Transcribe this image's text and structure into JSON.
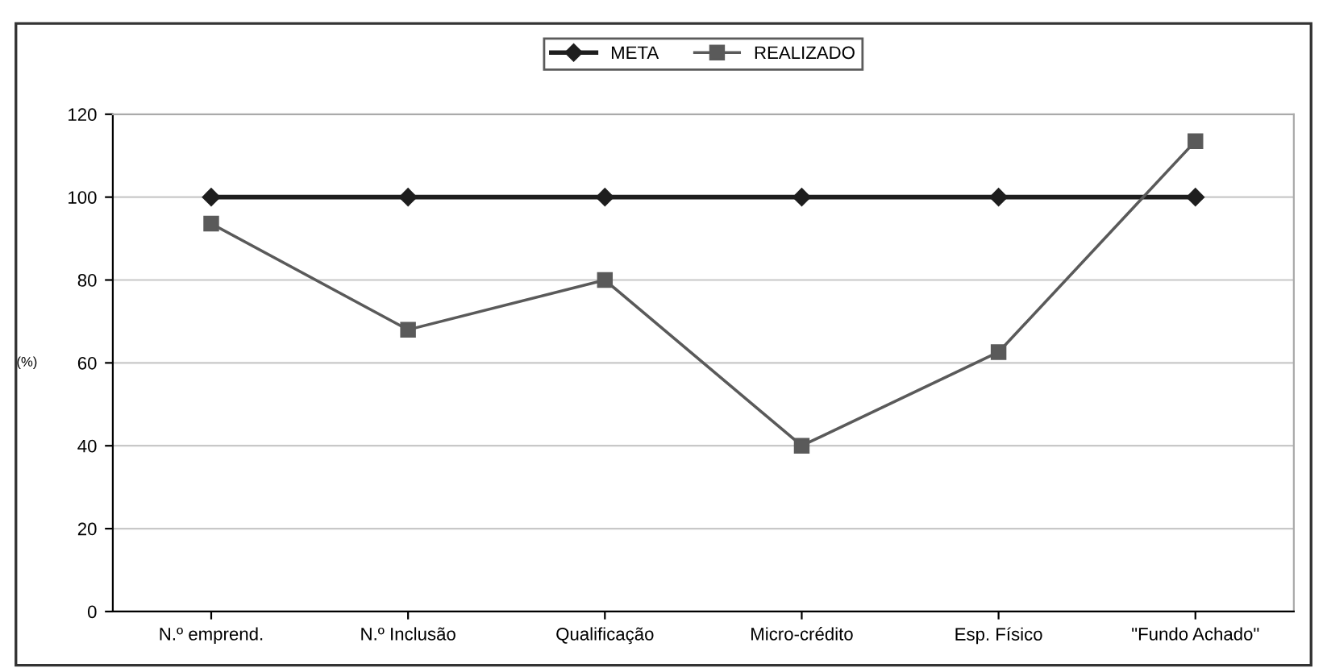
{
  "chart_data": {
    "type": "line",
    "ylabel": "(%)",
    "categories": [
      "N.º emprend.",
      "N.º Inclusão",
      "Qualificação",
      "Micro-crédito",
      "Esp. Físico",
      "\"Fundo Achado\""
    ],
    "series": [
      {
        "name": "META",
        "color": "#1e1e1e",
        "marker": "diamond",
        "values": [
          100,
          100,
          100,
          100,
          100,
          100
        ]
      },
      {
        "name": "REALIZADO",
        "color": "#5a5a5a",
        "marker": "square",
        "values": [
          93.6,
          68,
          80,
          40,
          62.6,
          113.5
        ]
      }
    ],
    "ylim": [
      0,
      120
    ],
    "yticks": [
      0,
      20,
      40,
      60,
      80,
      100,
      120
    ],
    "grid": "y",
    "legend": "top"
  }
}
